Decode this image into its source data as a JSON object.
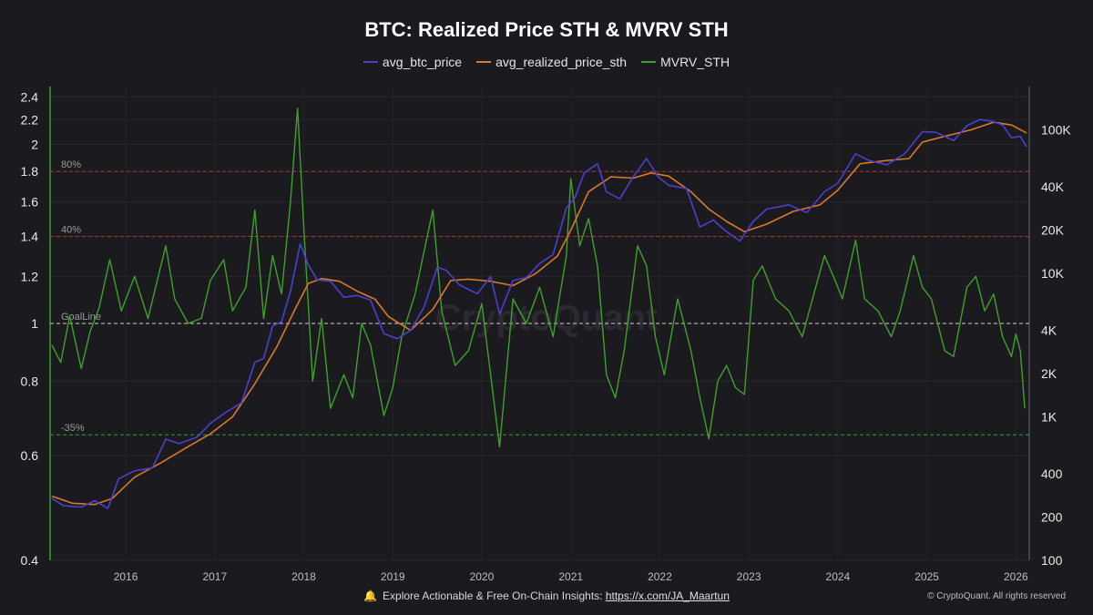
{
  "title": "BTC: Realized Price STH & MVRV STH",
  "legend": [
    {
      "label": "avg_btc_price",
      "color": "#4b3fd0"
    },
    {
      "label": "avg_realized_price_sth",
      "color": "#d9772b"
    },
    {
      "label": "MVRV_STH",
      "color": "#3fa02a"
    }
  ],
  "footer": {
    "text": "Explore Actionable & Free On-Chain Insights:",
    "link": "https://x.com/JA_Maartun",
    "copyright": "© CryptoQuant. All rights reserved",
    "watermark": "CryptoQuant"
  },
  "chart_data": {
    "type": "line",
    "title": "BTC: Realized Price STH & MVRV STH",
    "x_ticks": [
      "2016",
      "2017",
      "2018",
      "2019",
      "2020",
      "2021",
      "2022",
      "2023",
      "2024",
      "2025",
      "2026"
    ],
    "xlim": [
      2015.15,
      2026.15
    ],
    "left_axis": {
      "scale": "log",
      "ylim": [
        0.4,
        2.5
      ],
      "ticks": [
        "2.4",
        "2.2",
        "2",
        "1.8",
        "1.6",
        "1.4",
        "1.2",
        "1",
        "0.8",
        "0.6",
        "0.4"
      ]
    },
    "right_axis": {
      "scale": "log",
      "ylim": [
        100,
        200000
      ],
      "ticks": [
        "100K",
        "40K",
        "20K",
        "10K",
        "4K",
        "2K",
        "1K",
        "400",
        "200",
        "100"
      ]
    },
    "reference_lines": [
      {
        "label": "80%",
        "value": 1.8,
        "color": "#b03030"
      },
      {
        "label": "40%",
        "value": 1.4,
        "color": "#b03030"
      },
      {
        "label": "GoalLine",
        "value": 1.0,
        "color": "#cfcfcf"
      },
      {
        "label": "-35%",
        "value": 0.65,
        "color": "#3a9a3a"
      }
    ],
    "series": [
      {
        "name": "avg_btc_price",
        "axis": "right",
        "color": "#4b3fd0",
        "points": [
          [
            2015.17,
            270
          ],
          [
            2015.3,
            240
          ],
          [
            2015.5,
            235
          ],
          [
            2015.65,
            260
          ],
          [
            2015.8,
            230
          ],
          [
            2015.92,
            370
          ],
          [
            2016.1,
            420
          ],
          [
            2016.3,
            440
          ],
          [
            2016.45,
            700
          ],
          [
            2016.6,
            650
          ],
          [
            2016.8,
            720
          ],
          [
            2016.95,
            900
          ],
          [
            2017.1,
            1050
          ],
          [
            2017.3,
            1250
          ],
          [
            2017.45,
            2400
          ],
          [
            2017.55,
            2550
          ],
          [
            2017.65,
            4300
          ],
          [
            2017.75,
            4600
          ],
          [
            2017.85,
            7500
          ],
          [
            2017.96,
            16000
          ],
          [
            2018.05,
            11500
          ],
          [
            2018.15,
            9000
          ],
          [
            2018.3,
            8800
          ],
          [
            2018.45,
            6800
          ],
          [
            2018.6,
            7000
          ],
          [
            2018.75,
            6500
          ],
          [
            2018.9,
            3800
          ],
          [
            2019.05,
            3500
          ],
          [
            2019.2,
            4000
          ],
          [
            2019.35,
            5800
          ],
          [
            2019.5,
            11000
          ],
          [
            2019.6,
            10500
          ],
          [
            2019.75,
            8300
          ],
          [
            2019.95,
            7200
          ],
          [
            2020.1,
            9500
          ],
          [
            2020.2,
            5200
          ],
          [
            2020.35,
            8900
          ],
          [
            2020.5,
            9300
          ],
          [
            2020.65,
            11700
          ],
          [
            2020.8,
            13500
          ],
          [
            2020.95,
            28500
          ],
          [
            2021.05,
            34000
          ],
          [
            2021.15,
            50000
          ],
          [
            2021.3,
            58000
          ],
          [
            2021.4,
            37000
          ],
          [
            2021.55,
            33000
          ],
          [
            2021.7,
            47000
          ],
          [
            2021.85,
            63000
          ],
          [
            2021.98,
            47000
          ],
          [
            2022.1,
            41000
          ],
          [
            2022.3,
            39000
          ],
          [
            2022.45,
            21000
          ],
          [
            2022.6,
            23500
          ],
          [
            2022.75,
            19500
          ],
          [
            2022.9,
            16800
          ],
          [
            2023.05,
            23000
          ],
          [
            2023.2,
            28000
          ],
          [
            2023.45,
            30000
          ],
          [
            2023.65,
            26500
          ],
          [
            2023.85,
            37000
          ],
          [
            2024.0,
            42500
          ],
          [
            2024.2,
            68000
          ],
          [
            2024.35,
            61000
          ],
          [
            2024.55,
            57000
          ],
          [
            2024.75,
            68000
          ],
          [
            2024.95,
            97000
          ],
          [
            2025.1,
            96000
          ],
          [
            2025.3,
            84000
          ],
          [
            2025.45,
            107000
          ],
          [
            2025.6,
            118000
          ],
          [
            2025.75,
            114000
          ],
          [
            2025.85,
            108000
          ],
          [
            2025.95,
            88000
          ],
          [
            2026.05,
            90000
          ],
          [
            2026.12,
            76000
          ]
        ]
      },
      {
        "name": "avg_realized_price_sth",
        "axis": "right",
        "color": "#d9772b",
        "points": [
          [
            2015.17,
            280
          ],
          [
            2015.4,
            250
          ],
          [
            2015.65,
            245
          ],
          [
            2015.85,
            270
          ],
          [
            2016.1,
            380
          ],
          [
            2016.4,
            480
          ],
          [
            2016.7,
            620
          ],
          [
            2016.95,
            760
          ],
          [
            2017.2,
            1000
          ],
          [
            2017.45,
            1700
          ],
          [
            2017.7,
            3100
          ],
          [
            2017.9,
            5600
          ],
          [
            2018.05,
            8500
          ],
          [
            2018.2,
            9200
          ],
          [
            2018.4,
            8800
          ],
          [
            2018.6,
            7500
          ],
          [
            2018.8,
            6600
          ],
          [
            2018.95,
            5000
          ],
          [
            2019.2,
            4000
          ],
          [
            2019.45,
            5600
          ],
          [
            2019.65,
            8900
          ],
          [
            2019.85,
            9100
          ],
          [
            2020.1,
            8800
          ],
          [
            2020.35,
            8200
          ],
          [
            2020.6,
            9900
          ],
          [
            2020.85,
            13200
          ],
          [
            2021.0,
            20000
          ],
          [
            2021.2,
            37000
          ],
          [
            2021.45,
            47000
          ],
          [
            2021.7,
            46000
          ],
          [
            2021.9,
            50000
          ],
          [
            2022.1,
            47500
          ],
          [
            2022.35,
            37000
          ],
          [
            2022.55,
            28000
          ],
          [
            2022.75,
            23000
          ],
          [
            2022.95,
            19500
          ],
          [
            2023.2,
            22000
          ],
          [
            2023.5,
            27000
          ],
          [
            2023.8,
            30000
          ],
          [
            2024.0,
            38000
          ],
          [
            2024.25,
            58000
          ],
          [
            2024.55,
            61000
          ],
          [
            2024.8,
            63000
          ],
          [
            2024.95,
            82000
          ],
          [
            2025.2,
            90000
          ],
          [
            2025.5,
            100000
          ],
          [
            2025.75,
            113000
          ],
          [
            2025.95,
            108000
          ],
          [
            2026.12,
            95000
          ]
        ]
      },
      {
        "name": "MVRV_STH",
        "axis": "left",
        "color": "#3fa02a",
        "points": [
          [
            2015.17,
            0.92
          ],
          [
            2015.27,
            0.86
          ],
          [
            2015.37,
            1.03
          ],
          [
            2015.5,
            0.84
          ],
          [
            2015.6,
            0.97
          ],
          [
            2015.7,
            1.06
          ],
          [
            2015.82,
            1.28
          ],
          [
            2015.95,
            1.05
          ],
          [
            2016.1,
            1.2
          ],
          [
            2016.25,
            1.02
          ],
          [
            2016.45,
            1.35
          ],
          [
            2016.55,
            1.1
          ],
          [
            2016.7,
            1.0
          ],
          [
            2016.85,
            1.02
          ],
          [
            2016.95,
            1.18
          ],
          [
            2017.1,
            1.28
          ],
          [
            2017.2,
            1.05
          ],
          [
            2017.35,
            1.15
          ],
          [
            2017.45,
            1.55
          ],
          [
            2017.55,
            1.02
          ],
          [
            2017.65,
            1.3
          ],
          [
            2017.75,
            1.12
          ],
          [
            2017.85,
            1.6
          ],
          [
            2017.93,
            2.3
          ],
          [
            2018.0,
            1.45
          ],
          [
            2018.1,
            0.8
          ],
          [
            2018.2,
            1.02
          ],
          [
            2018.3,
            0.72
          ],
          [
            2018.45,
            0.82
          ],
          [
            2018.55,
            0.75
          ],
          [
            2018.65,
            1.0
          ],
          [
            2018.75,
            0.92
          ],
          [
            2018.9,
            0.7
          ],
          [
            2019.0,
            0.78
          ],
          [
            2019.1,
            0.95
          ],
          [
            2019.25,
            1.12
          ],
          [
            2019.45,
            1.55
          ],
          [
            2019.55,
            1.05
          ],
          [
            2019.7,
            0.85
          ],
          [
            2019.85,
            0.9
          ],
          [
            2020.0,
            1.08
          ],
          [
            2020.2,
            0.62
          ],
          [
            2020.35,
            1.1
          ],
          [
            2020.5,
            1.0
          ],
          [
            2020.65,
            1.15
          ],
          [
            2020.8,
            0.95
          ],
          [
            2020.95,
            1.3
          ],
          [
            2021.0,
            1.75
          ],
          [
            2021.1,
            1.35
          ],
          [
            2021.2,
            1.5
          ],
          [
            2021.3,
            1.25
          ],
          [
            2021.4,
            0.82
          ],
          [
            2021.5,
            0.75
          ],
          [
            2021.6,
            0.9
          ],
          [
            2021.75,
            1.35
          ],
          [
            2021.85,
            1.25
          ],
          [
            2021.95,
            0.95
          ],
          [
            2022.05,
            0.82
          ],
          [
            2022.2,
            1.1
          ],
          [
            2022.35,
            0.9
          ],
          [
            2022.45,
            0.75
          ],
          [
            2022.55,
            0.64
          ],
          [
            2022.65,
            0.8
          ],
          [
            2022.75,
            0.85
          ],
          [
            2022.85,
            0.78
          ],
          [
            2022.95,
            0.76
          ],
          [
            2023.05,
            1.18
          ],
          [
            2023.15,
            1.25
          ],
          [
            2023.3,
            1.1
          ],
          [
            2023.45,
            1.05
          ],
          [
            2023.6,
            0.95
          ],
          [
            2023.75,
            1.15
          ],
          [
            2023.85,
            1.3
          ],
          [
            2023.95,
            1.2
          ],
          [
            2024.05,
            1.1
          ],
          [
            2024.2,
            1.38
          ],
          [
            2024.3,
            1.1
          ],
          [
            2024.45,
            1.05
          ],
          [
            2024.6,
            0.95
          ],
          [
            2024.7,
            1.05
          ],
          [
            2024.85,
            1.3
          ],
          [
            2024.95,
            1.15
          ],
          [
            2025.05,
            1.1
          ],
          [
            2025.2,
            0.9
          ],
          [
            2025.3,
            0.88
          ],
          [
            2025.45,
            1.15
          ],
          [
            2025.55,
            1.2
          ],
          [
            2025.65,
            1.05
          ],
          [
            2025.75,
            1.12
          ],
          [
            2025.85,
            0.95
          ],
          [
            2025.95,
            0.88
          ],
          [
            2026.0,
            0.96
          ],
          [
            2026.05,
            0.9
          ],
          [
            2026.1,
            0.72
          ]
        ]
      }
    ]
  }
}
